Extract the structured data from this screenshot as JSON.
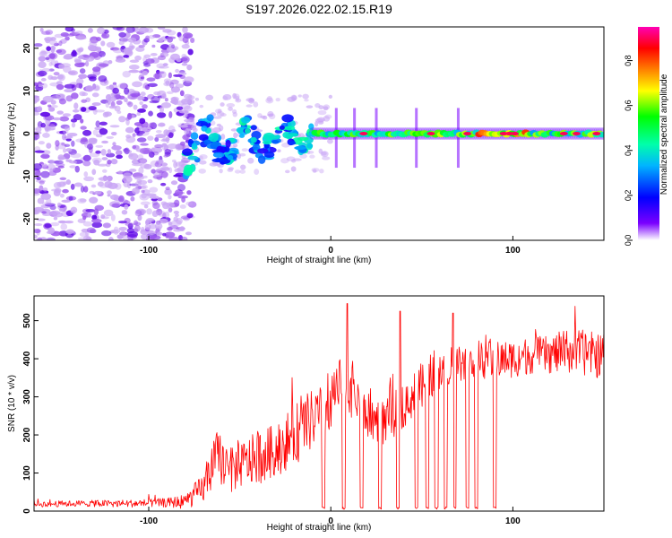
{
  "figure_title": "S197.2026.022.02.15.R19",
  "chart_data": [
    {
      "type": "heatmap",
      "xlabel": "Height of straight line (km)",
      "ylabel": "Frequency (Hz)",
      "xlim": [
        -163,
        150
      ],
      "ylim": [
        -25,
        25
      ],
      "x_ticks": [
        -100,
        0,
        100
      ],
      "y_ticks": [
        -20,
        -10,
        0,
        10,
        20
      ],
      "colorbar": {
        "label": "Normalized spectral amplitude",
        "range": [
          0,
          0.95
        ],
        "ticks": [
          0.0,
          0.2,
          0.4,
          0.6,
          0.8
        ],
        "colors": [
          "#ffffff",
          "#7a00ff",
          "#0000ff",
          "#00b4ff",
          "#00ffaa",
          "#00ff00",
          "#ffff00",
          "#ff8000",
          "#ff0000",
          "#ff00b4"
        ]
      },
      "signal_track": {
        "noise_region_x": [
          -163,
          -80
        ],
        "transition_region_x": [
          -80,
          -10
        ],
        "stable_region_x": [
          -10,
          150
        ],
        "center_freq_hz": 0,
        "peak_amplitude": 0.9,
        "vertical_streaks_x": [
          3,
          13,
          25,
          47,
          70
        ]
      }
    },
    {
      "type": "line",
      "xlabel": "Height of straight line (km)",
      "ylabel": "SNR (10 * v/v)",
      "xlim": [
        -163,
        150
      ],
      "ylim": [
        0,
        565
      ],
      "x_ticks": [
        -100,
        0,
        100
      ],
      "y_ticks": [
        0,
        100,
        200,
        300,
        400,
        500
      ],
      "series": [
        {
          "name": "SNR",
          "color": "#ff0000",
          "x": [
            -163,
            -140,
            -110,
            -90,
            -80,
            -70,
            -62,
            -56,
            -50,
            -40,
            -30,
            -20,
            -10,
            0,
            5,
            10,
            15,
            20,
            30,
            40,
            50,
            60,
            70,
            80,
            90,
            100,
            110,
            120,
            130,
            140,
            150
          ],
          "mean": [
            18,
            20,
            20,
            22,
            25,
            60,
            150,
            100,
            120,
            140,
            160,
            200,
            240,
            280,
            320,
            330,
            300,
            250,
            230,
            280,
            330,
            380,
            390,
            400,
            395,
            400,
            410,
            410,
            420,
            415,
            405
          ],
          "noise": [
            8,
            8,
            10,
            12,
            20,
            40,
            70,
            60,
            60,
            70,
            70,
            80,
            80,
            70,
            80,
            80,
            70,
            60,
            60,
            60,
            60,
            60,
            50,
            50,
            50,
            50,
            50,
            50,
            60,
            60,
            60
          ],
          "dropouts_x": [
            -4,
            7,
            17,
            27,
            37,
            47,
            53,
            58,
            63,
            68,
            75,
            80,
            90
          ],
          "spike_x": [
            9,
            38,
            67
          ],
          "spike_y": [
            545,
            525,
            520
          ]
        }
      ]
    }
  ]
}
